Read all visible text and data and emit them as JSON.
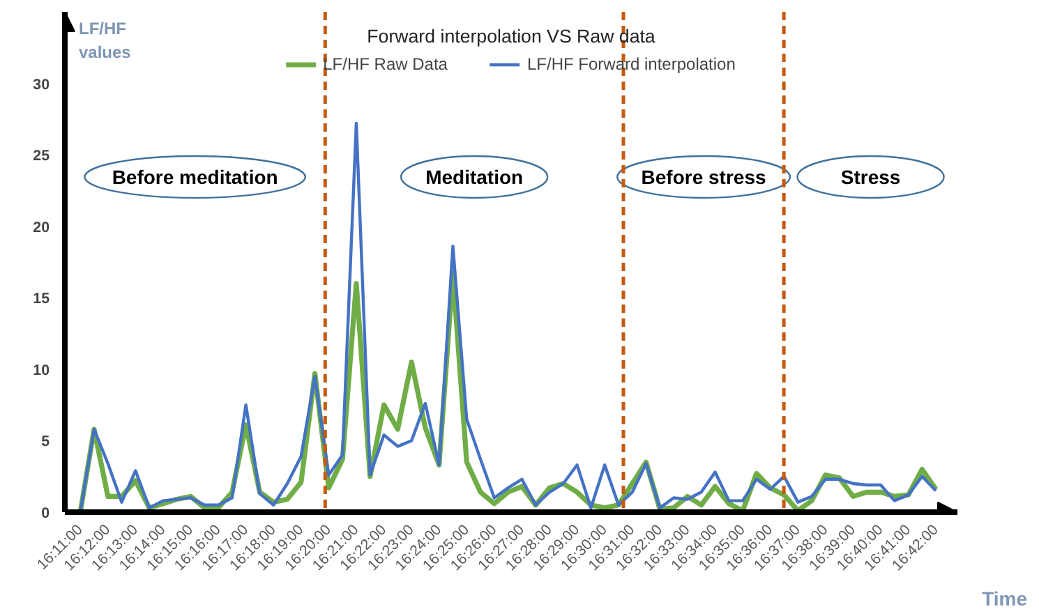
{
  "chart_data": {
    "type": "line",
    "title": "Forward interpolation VS Raw data",
    "xlabel": "Time",
    "ylabel": "LF/HF values",
    "x": [
      16.18333,
      16.19167,
      16.2,
      16.20833,
      16.21667,
      16.225,
      16.23333,
      16.24167,
      16.25,
      16.25833,
      16.26667,
      16.275,
      16.28333,
      16.29167,
      16.3,
      16.30833,
      16.31667,
      16.325,
      16.33333,
      16.34167,
      16.35,
      16.35833,
      16.36667,
      16.375,
      16.38333,
      16.39167,
      16.4,
      16.40833,
      16.41667,
      16.425,
      16.43333,
      16.44167,
      16.45,
      16.45833,
      16.46667,
      16.475,
      16.48333,
      16.49167,
      16.5,
      16.50833,
      16.51667,
      16.525,
      16.53333,
      16.54167,
      16.55,
      16.55833,
      16.56667,
      16.575,
      16.58333,
      16.59167,
      16.6,
      16.60833,
      16.61667,
      16.625,
      16.63333,
      16.64167,
      16.65,
      16.65833,
      16.66667,
      16.675,
      16.68333,
      16.69167,
      16.7
    ],
    "series": [
      {
        "name": "LF/HF Raw Data",
        "color": "#70ad47",
        "values": [
          0,
          5.8,
          1.1,
          1.1,
          2.2,
          0.3,
          0.6,
          0.9,
          1.1,
          0.3,
          0.3,
          1.4,
          6.1,
          1.4,
          0.7,
          0.9,
          2.1,
          9.7,
          1.7,
          3.7,
          16.0,
          2.5,
          7.5,
          5.8,
          10.5,
          5.9,
          3.3,
          16.7,
          3.5,
          1.4,
          0.6,
          1.4,
          1.8,
          0.5,
          1.7,
          2.0,
          1.4,
          0.5,
          0.3,
          0.5,
          2.0,
          3.5,
          0.2,
          0.3,
          1.1,
          0.5,
          1.8,
          0.6,
          0.1,
          2.7,
          1.7,
          1.2,
          0.1,
          0.8,
          2.6,
          2.4,
          1.1,
          1.4,
          1.4,
          1.1,
          1.2,
          3.0,
          1.6
        ]
      },
      {
        "name": "LF/HF Forward interpolation",
        "color": "#4472c4",
        "values": [
          0,
          5.8,
          3.4,
          0.7,
          2.9,
          0.3,
          0.8,
          0.9,
          1.0,
          0.5,
          0.5,
          1.0,
          7.5,
          1.3,
          0.5,
          2.0,
          3.9,
          9.5,
          2.6,
          4.0,
          27.2,
          2.6,
          5.4,
          4.6,
          5.0,
          7.6,
          3.3,
          18.6,
          6.5,
          3.7,
          1.0,
          1.7,
          2.3,
          0.5,
          1.4,
          2.0,
          3.3,
          0.3,
          3.3,
          0.5,
          1.4,
          3.4,
          0.3,
          1.0,
          0.9,
          1.4,
          2.8,
          0.8,
          0.8,
          2.3,
          1.6,
          2.5,
          0.7,
          1.1,
          2.3,
          2.3,
          2.0,
          1.9,
          1.9,
          0.8,
          1.2,
          2.5,
          1.5
        ]
      }
    ],
    "xlim": [
      16.174,
      16.713
    ],
    "xticks": [
      {
        "value": 16.18333,
        "label": "16:11:00"
      },
      {
        "value": 16.2,
        "label": "16:12:00"
      },
      {
        "value": 16.21667,
        "label": "16:13:00"
      },
      {
        "value": 16.23333,
        "label": "16:14:00"
      },
      {
        "value": 16.25,
        "label": "16:15:00"
      },
      {
        "value": 16.26667,
        "label": "16:16:00"
      },
      {
        "value": 16.28333,
        "label": "16:17:00"
      },
      {
        "value": 16.3,
        "label": "16:18:00"
      },
      {
        "value": 16.31667,
        "label": "16:19:00"
      },
      {
        "value": 16.33333,
        "label": "16:20:00"
      },
      {
        "value": 16.35,
        "label": "16:21:00"
      },
      {
        "value": 16.36667,
        "label": "16:22:00"
      },
      {
        "value": 16.38333,
        "label": "16:23:00"
      },
      {
        "value": 16.4,
        "label": "16:24:00"
      },
      {
        "value": 16.41667,
        "label": "16:25:00"
      },
      {
        "value": 16.43333,
        "label": "16:26:00"
      },
      {
        "value": 16.45,
        "label": "16:27:00"
      },
      {
        "value": 16.46667,
        "label": "16:28:00"
      },
      {
        "value": 16.48333,
        "label": "16:29:00"
      },
      {
        "value": 16.5,
        "label": "16:30:00"
      },
      {
        "value": 16.51667,
        "label": "16:31:00"
      },
      {
        "value": 16.53333,
        "label": "16:32:00"
      },
      {
        "value": 16.55,
        "label": "16:33:00"
      },
      {
        "value": 16.56667,
        "label": "16:34:00"
      },
      {
        "value": 16.58333,
        "label": "16:35:00"
      },
      {
        "value": 16.6,
        "label": "16:36:00"
      },
      {
        "value": 16.61667,
        "label": "16:37:00"
      },
      {
        "value": 16.63333,
        "label": "16:38:00"
      },
      {
        "value": 16.65,
        "label": "16:39:00"
      },
      {
        "value": 16.66667,
        "label": "16:40:00"
      },
      {
        "value": 16.68333,
        "label": "16:41:00"
      },
      {
        "value": 16.7,
        "label": "16:42:00"
      }
    ],
    "ylim": [
      0,
      35
    ],
    "yticks": [
      0,
      5,
      10,
      15,
      20,
      25,
      30
    ],
    "ref_lines": [
      {
        "axis": "x",
        "value": 16.3312,
        "color": "#c55a11",
        "line_style": "dashed"
      },
      {
        "axis": "x",
        "value": 16.5113,
        "color": "#c55a11",
        "line_style": "dashed"
      },
      {
        "axis": "x",
        "value": 16.6082,
        "color": "#c55a11",
        "line_style": "dashed"
      }
    ],
    "annotations": [
      "Before meditation",
      "Meditation",
      "Before stress",
      "Stress"
    ],
    "legend": "top",
    "grid": false,
    "marker": "none",
    "line_style": "solid"
  }
}
